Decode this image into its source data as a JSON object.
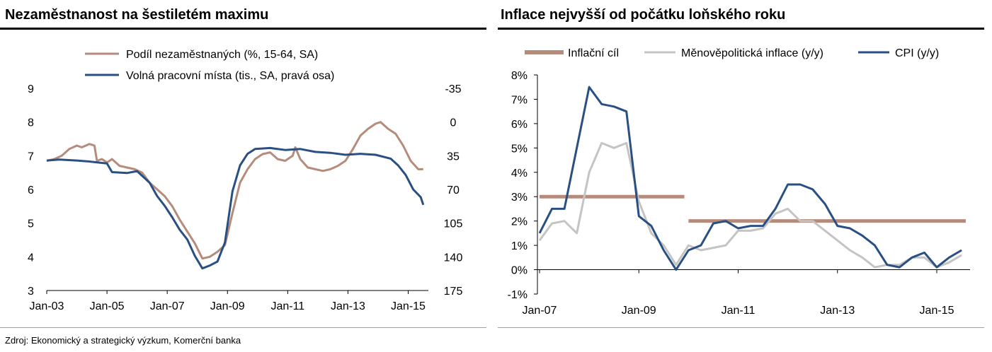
{
  "left_panel": {
    "title": "Nezaměstnanost na šestiletém maximu"
  },
  "right_panel": {
    "title": "Inflace nejvyšší od počátku loňského roku"
  },
  "footer": {
    "source": "Zdroj: Ekonomický a strategický výzkum, Komerční banka"
  },
  "colors": {
    "brown": "#b58c7c",
    "blue": "#2a4f82",
    "grey": "#c4c4c4"
  },
  "chart_data": [
    {
      "type": "line",
      "title": "Nezaměstnanost na šestiletém maximu",
      "x_ticks": [
        "Jan-03",
        "Jan-05",
        "Jan-07",
        "Jan-09",
        "Jan-11",
        "Jan-13",
        "Jan-15"
      ],
      "y_left": {
        "range": [
          3,
          9
        ],
        "ticks": [
          "9",
          "8",
          "7",
          "6",
          "5",
          "4",
          "3"
        ]
      },
      "y_right": {
        "range": [
          175,
          -35
        ],
        "reversed": true,
        "ticks": [
          "-35",
          "0",
          "35",
          "70",
          "105",
          "140",
          "175"
        ]
      },
      "legend_position": "top-center",
      "series": [
        {
          "name": "Podíl nezaměstnaných (%, 15-64, SA)",
          "color": "#b58c7c",
          "axis": "left",
          "points": [
            [
              "2003-01",
              6.85
            ],
            [
              "2003-04",
              6.9
            ],
            [
              "2003-07",
              7.0
            ],
            [
              "2003-10",
              7.2
            ],
            [
              "2004-01",
              7.3
            ],
            [
              "2004-03",
              7.25
            ],
            [
              "2004-06",
              7.35
            ],
            [
              "2004-08",
              7.3
            ],
            [
              "2004-09",
              6.85
            ],
            [
              "2004-11",
              6.9
            ],
            [
              "2005-01",
              6.8
            ],
            [
              "2005-03",
              6.9
            ],
            [
              "2005-06",
              6.7
            ],
            [
              "2005-09",
              6.65
            ],
            [
              "2005-12",
              6.6
            ],
            [
              "2006-03",
              6.5
            ],
            [
              "2006-06",
              6.2
            ],
            [
              "2006-09",
              6.0
            ],
            [
              "2006-12",
              5.8
            ],
            [
              "2007-03",
              5.5
            ],
            [
              "2007-06",
              5.1
            ],
            [
              "2007-09",
              4.75
            ],
            [
              "2007-12",
              4.4
            ],
            [
              "2008-03",
              3.95
            ],
            [
              "2008-06",
              4.0
            ],
            [
              "2008-09",
              4.15
            ],
            [
              "2008-12",
              4.35
            ],
            [
              "2009-03",
              5.3
            ],
            [
              "2009-06",
              6.2
            ],
            [
              "2009-09",
              6.6
            ],
            [
              "2009-12",
              6.9
            ],
            [
              "2010-03",
              7.05
            ],
            [
              "2010-06",
              7.1
            ],
            [
              "2010-09",
              6.9
            ],
            [
              "2010-12",
              6.85
            ],
            [
              "2011-03",
              7.0
            ],
            [
              "2011-04",
              7.25
            ],
            [
              "2011-06",
              6.9
            ],
            [
              "2011-09",
              6.65
            ],
            [
              "2011-12",
              6.6
            ],
            [
              "2012-03",
              6.55
            ],
            [
              "2012-06",
              6.6
            ],
            [
              "2012-09",
              6.7
            ],
            [
              "2012-12",
              6.85
            ],
            [
              "2013-03",
              7.2
            ],
            [
              "2013-06",
              7.6
            ],
            [
              "2013-09",
              7.8
            ],
            [
              "2013-12",
              7.95
            ],
            [
              "2014-02",
              8.0
            ],
            [
              "2014-05",
              7.8
            ],
            [
              "2014-08",
              7.65
            ],
            [
              "2014-11",
              7.3
            ],
            [
              "2015-02",
              6.85
            ],
            [
              "2015-05",
              6.6
            ],
            [
              "2015-07",
              6.6
            ]
          ]
        },
        {
          "name": "Volná pracovní místa (tis., SA, pravá osa)",
          "color": "#2a4f82",
          "axis": "right",
          "points": [
            [
              "2003-01",
              40
            ],
            [
              "2003-06",
              39
            ],
            [
              "2004-01",
              40
            ],
            [
              "2004-06",
              41
            ],
            [
              "2005-01",
              43
            ],
            [
              "2005-03",
              52
            ],
            [
              "2005-09",
              53
            ],
            [
              "2006-01",
              51
            ],
            [
              "2006-06",
              63
            ],
            [
              "2006-09",
              77
            ],
            [
              "2006-12",
              87
            ],
            [
              "2007-03",
              99
            ],
            [
              "2007-06",
              112
            ],
            [
              "2007-09",
              122
            ],
            [
              "2007-12",
              139
            ],
            [
              "2008-03",
              152
            ],
            [
              "2008-06",
              149
            ],
            [
              "2008-09",
              145
            ],
            [
              "2008-12",
              125
            ],
            [
              "2009-03",
              72
            ],
            [
              "2009-06",
              45
            ],
            [
              "2009-09",
              33
            ],
            [
              "2009-12",
              28
            ],
            [
              "2010-06",
              27
            ],
            [
              "2010-12",
              29
            ],
            [
              "2011-06",
              28
            ],
            [
              "2011-12",
              31
            ],
            [
              "2012-06",
              32
            ],
            [
              "2012-12",
              34
            ],
            [
              "2013-06",
              33
            ],
            [
              "2013-12",
              34
            ],
            [
              "2014-06",
              38
            ],
            [
              "2014-09",
              45
            ],
            [
              "2014-12",
              55
            ],
            [
              "2015-03",
              70
            ],
            [
              "2015-06",
              78
            ],
            [
              "2015-07",
              86
            ]
          ]
        }
      ]
    },
    {
      "type": "line",
      "title": "Inflace nejvyšší od počátku loňského roku",
      "x_ticks": [
        "Jan-07",
        "Jan-09",
        "Jan-11",
        "Jan-13",
        "Jan-15"
      ],
      "y": {
        "range": [
          -1,
          8
        ],
        "ticks": [
          "8%",
          "7%",
          "6%",
          "5%",
          "4%",
          "3%",
          "2%",
          "1%",
          "0%",
          "-1%"
        ]
      },
      "legend_position": "top",
      "series": [
        {
          "name": "Inflační cíl",
          "color": "#b58c7c",
          "segments": [
            [
              [
                "2007-01",
                3.0
              ],
              [
                "2009-12",
                3.0
              ]
            ],
            [
              [
                "2010-01",
                2.0
              ],
              [
                "2015-08",
                2.0
              ]
            ]
          ]
        },
        {
          "name": "Měnověpolitická inflace (y/y)",
          "color": "#c4c4c4",
          "points": [
            [
              "2007-01",
              1.2
            ],
            [
              "2007-04",
              1.9
            ],
            [
              "2007-07",
              2.0
            ],
            [
              "2007-10",
              1.5
            ],
            [
              "2008-01",
              4.0
            ],
            [
              "2008-04",
              5.2
            ],
            [
              "2008-07",
              5.0
            ],
            [
              "2008-10",
              5.2
            ],
            [
              "2009-01",
              2.8
            ],
            [
              "2009-04",
              1.5
            ],
            [
              "2009-07",
              1.0
            ],
            [
              "2009-10",
              0.2
            ],
            [
              "2010-01",
              1.0
            ],
            [
              "2010-04",
              0.8
            ],
            [
              "2010-07",
              0.9
            ],
            [
              "2010-10",
              1.0
            ],
            [
              "2011-01",
              1.6
            ],
            [
              "2011-04",
              1.6
            ],
            [
              "2011-07",
              1.7
            ],
            [
              "2011-10",
              2.3
            ],
            [
              "2012-01",
              2.5
            ],
            [
              "2012-04",
              2.0
            ],
            [
              "2012-07",
              2.0
            ],
            [
              "2012-10",
              1.6
            ],
            [
              "2013-01",
              1.2
            ],
            [
              "2013-04",
              0.8
            ],
            [
              "2013-07",
              0.5
            ],
            [
              "2013-10",
              0.1
            ],
            [
              "2014-01",
              0.2
            ],
            [
              "2014-04",
              0.2
            ],
            [
              "2014-07",
              0.5
            ],
            [
              "2014-10",
              0.5
            ],
            [
              "2015-01",
              0.1
            ],
            [
              "2015-04",
              0.3
            ],
            [
              "2015-07",
              0.6
            ]
          ]
        },
        {
          "name": "CPI (y/y)",
          "color": "#2a4f82",
          "points": [
            [
              "2007-01",
              1.5
            ],
            [
              "2007-04",
              2.5
            ],
            [
              "2007-07",
              2.5
            ],
            [
              "2007-10",
              5.0
            ],
            [
              "2008-01",
              7.5
            ],
            [
              "2008-04",
              6.8
            ],
            [
              "2008-07",
              6.7
            ],
            [
              "2008-10",
              6.5
            ],
            [
              "2009-01",
              2.2
            ],
            [
              "2009-04",
              1.8
            ],
            [
              "2009-07",
              0.8
            ],
            [
              "2009-10",
              0.0
            ],
            [
              "2010-01",
              0.8
            ],
            [
              "2010-04",
              1.0
            ],
            [
              "2010-07",
              1.9
            ],
            [
              "2010-10",
              2.0
            ],
            [
              "2011-01",
              1.7
            ],
            [
              "2011-04",
              1.8
            ],
            [
              "2011-07",
              1.8
            ],
            [
              "2011-10",
              2.5
            ],
            [
              "2012-01",
              3.5
            ],
            [
              "2012-04",
              3.5
            ],
            [
              "2012-07",
              3.3
            ],
            [
              "2012-10",
              2.7
            ],
            [
              "2013-01",
              1.8
            ],
            [
              "2013-04",
              1.7
            ],
            [
              "2013-07",
              1.4
            ],
            [
              "2013-10",
              1.0
            ],
            [
              "2014-01",
              0.2
            ],
            [
              "2014-04",
              0.1
            ],
            [
              "2014-07",
              0.5
            ],
            [
              "2014-10",
              0.7
            ],
            [
              "2015-01",
              0.1
            ],
            [
              "2015-04",
              0.5
            ],
            [
              "2015-07",
              0.8
            ]
          ]
        }
      ]
    }
  ]
}
